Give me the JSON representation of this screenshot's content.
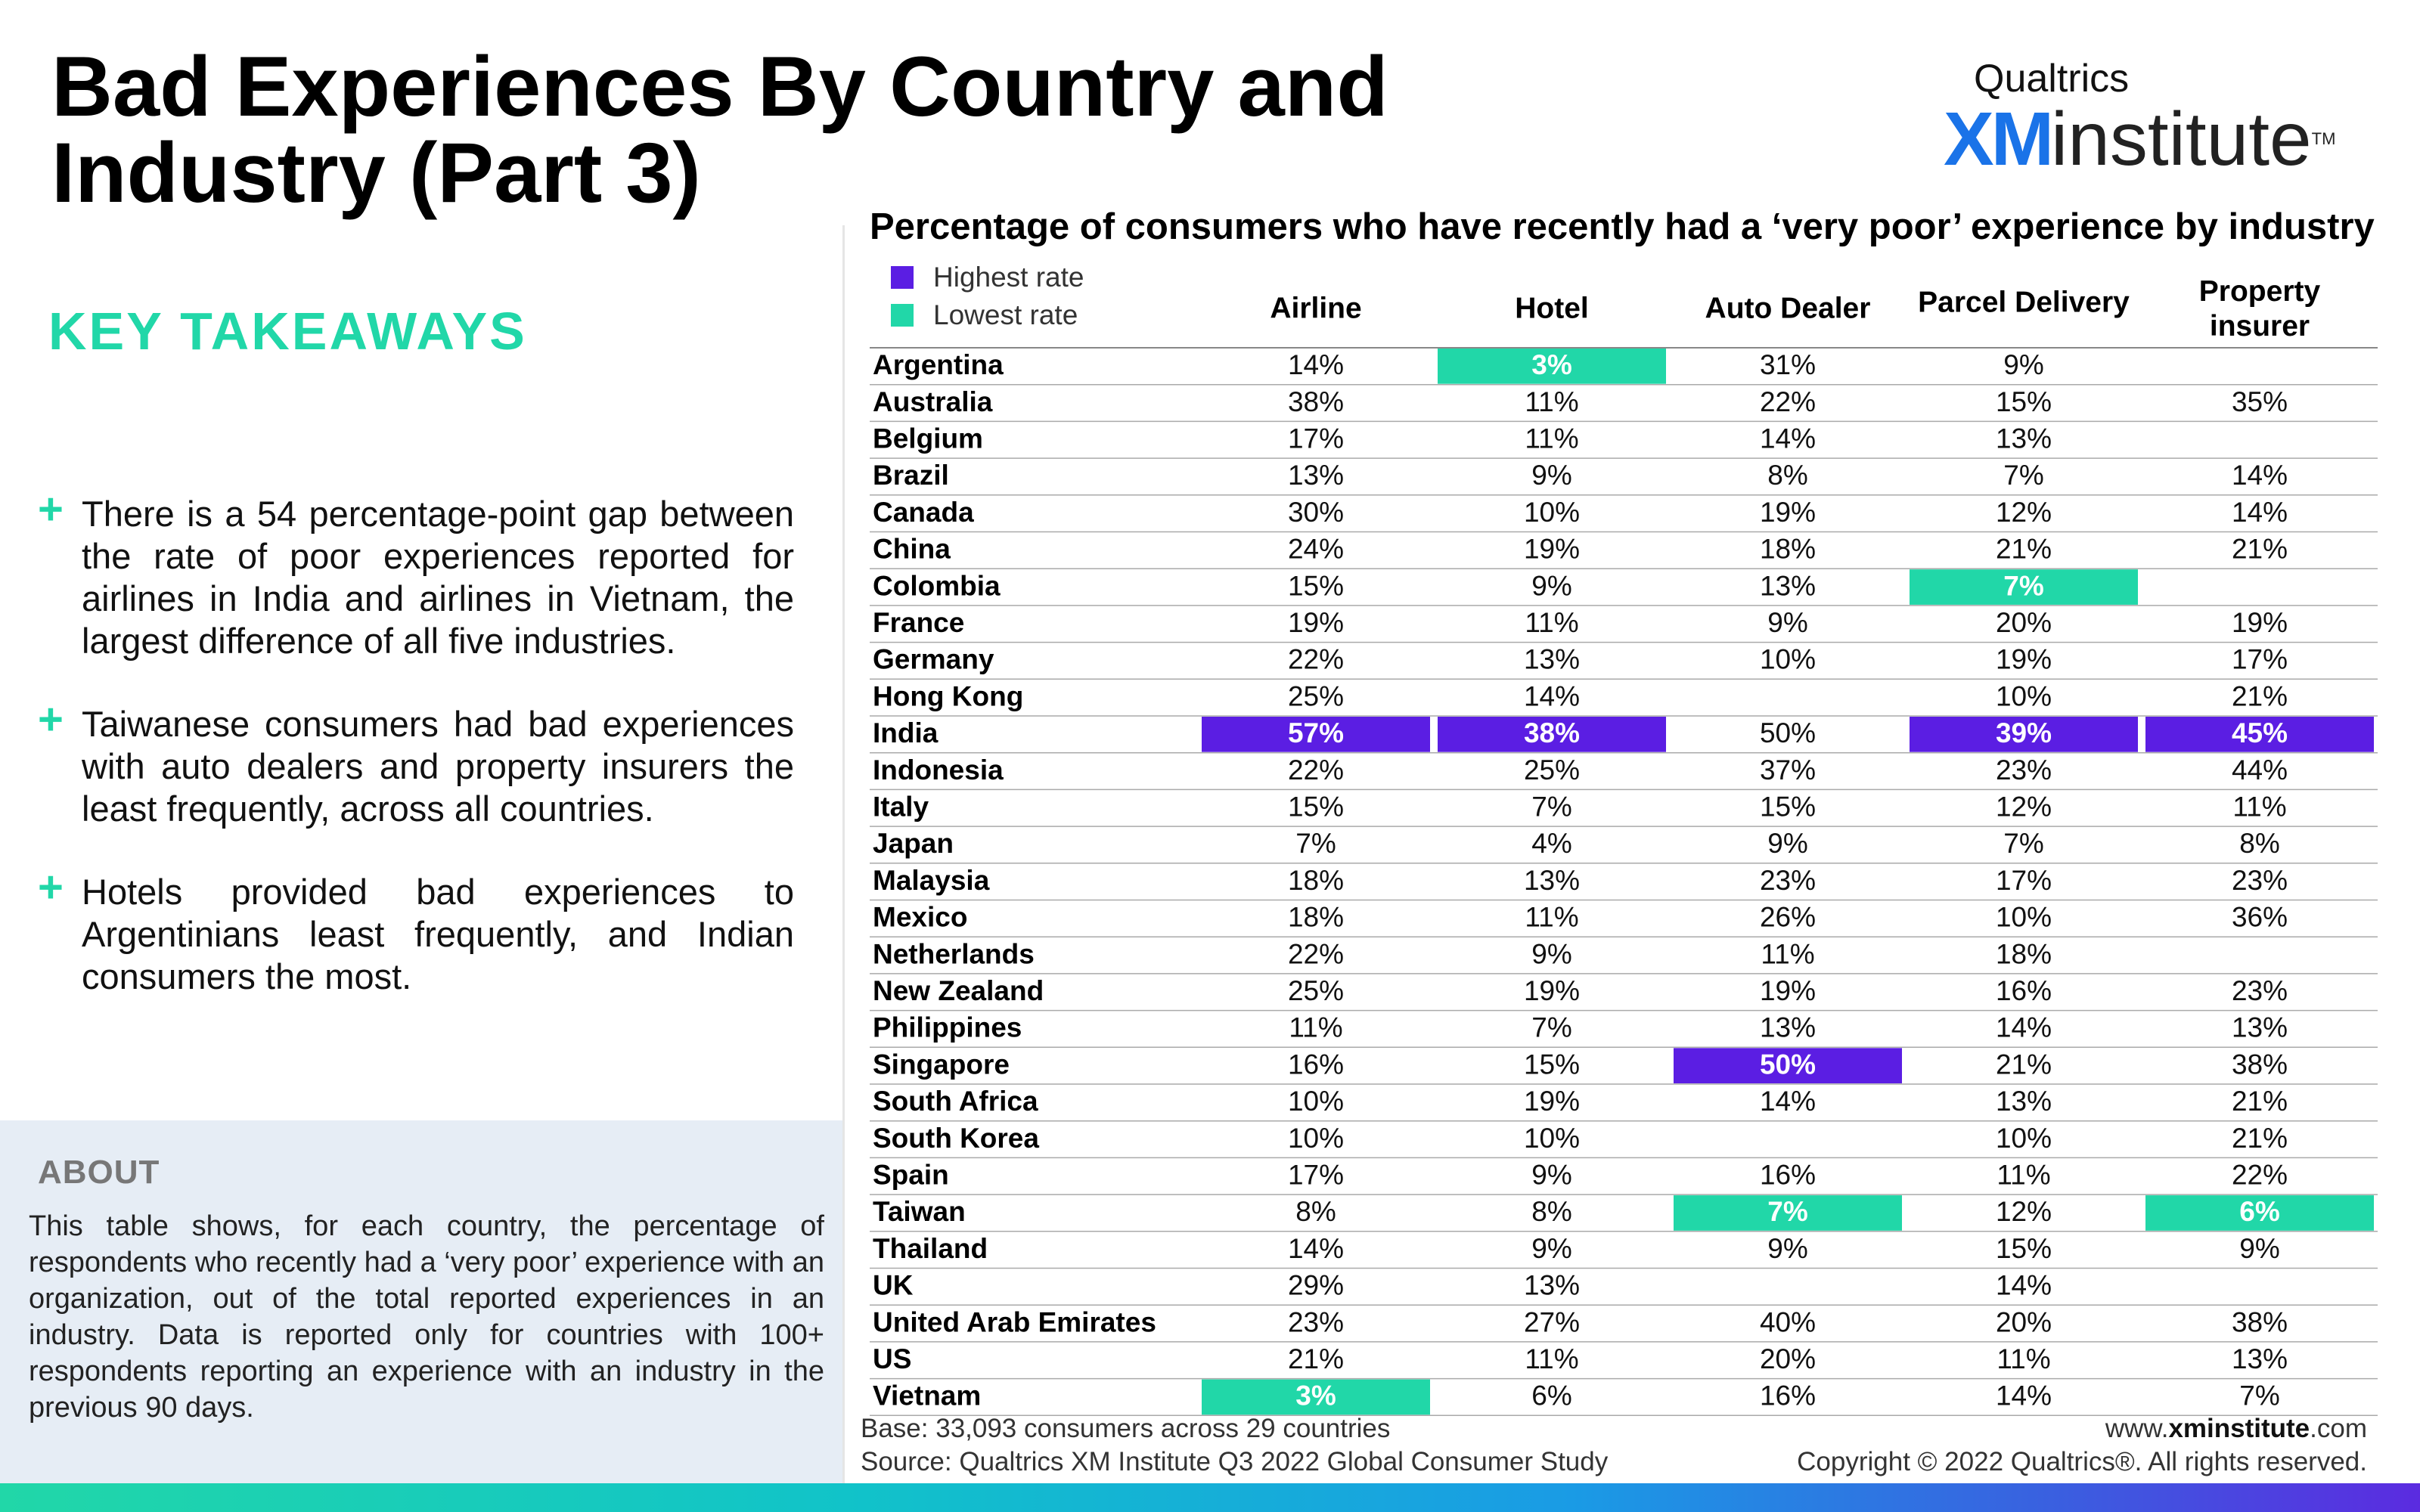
{
  "title": "Bad Experiences By Country and Industry (Part 3)",
  "logo": {
    "top": "Qualtrics",
    "xm": "XM",
    "institute": "institute",
    "tm": "TM"
  },
  "key_takeaways": {
    "heading": "KEY TAKEAWAYS",
    "items": [
      "There is a 54 percentage-point gap between the rate of poor experiences reported for airlines in India and airlines in Vietnam, the largest difference of all five industries.",
      "Taiwanese consumers had bad experiences with auto dealers and property insurers the least frequently, across all countries.",
      "Hotels provided bad experiences to Argentinians least frequently, and Indian consumers the most."
    ]
  },
  "about": {
    "heading": "ABOUT",
    "text": "This table shows, for each country, the percentage of respondents who recently had a ‘very poor’ experience with an organization, out of the total reported experiences in an industry. Data is reported only for countries with 100+ respondents reporting an experience with an industry in the previous 90 days."
  },
  "legend": {
    "highest": "Highest rate",
    "lowest": "Lowest rate"
  },
  "colors": {
    "highest": "#5b1ee3",
    "lowest": "#21d7a8",
    "accent": "#21d7a8"
  },
  "chart_data": {
    "type": "table",
    "title": "Percentage of consumers who have recently had a ‘very poor’ experience by industry",
    "columns": [
      "Airline",
      "Hotel",
      "Auto Dealer",
      "Parcel Delivery",
      "Property insurer"
    ],
    "rows": [
      {
        "country": "Argentina",
        "values": [
          "14%",
          "3%",
          "31%",
          "9%",
          ""
        ]
      },
      {
        "country": "Australia",
        "values": [
          "38%",
          "11%",
          "22%",
          "15%",
          "35%"
        ]
      },
      {
        "country": "Belgium",
        "values": [
          "17%",
          "11%",
          "14%",
          "13%",
          ""
        ]
      },
      {
        "country": "Brazil",
        "values": [
          "13%",
          "9%",
          "8%",
          "7%",
          "14%"
        ]
      },
      {
        "country": "Canada",
        "values": [
          "30%",
          "10%",
          "19%",
          "12%",
          "14%"
        ]
      },
      {
        "country": "China",
        "values": [
          "24%",
          "19%",
          "18%",
          "21%",
          "21%"
        ]
      },
      {
        "country": "Colombia",
        "values": [
          "15%",
          "9%",
          "13%",
          "7%",
          ""
        ]
      },
      {
        "country": "France",
        "values": [
          "19%",
          "11%",
          "9%",
          "20%",
          "19%"
        ]
      },
      {
        "country": "Germany",
        "values": [
          "22%",
          "13%",
          "10%",
          "19%",
          "17%"
        ]
      },
      {
        "country": "Hong Kong",
        "values": [
          "25%",
          "14%",
          "",
          "10%",
          "21%"
        ]
      },
      {
        "country": "India",
        "values": [
          "57%",
          "38%",
          "50%",
          "39%",
          "45%"
        ]
      },
      {
        "country": "Indonesia",
        "values": [
          "22%",
          "25%",
          "37%",
          "23%",
          "44%"
        ]
      },
      {
        "country": "Italy",
        "values": [
          "15%",
          "7%",
          "15%",
          "12%",
          "11%"
        ]
      },
      {
        "country": "Japan",
        "values": [
          "7%",
          "4%",
          "9%",
          "7%",
          "8%"
        ]
      },
      {
        "country": "Malaysia",
        "values": [
          "18%",
          "13%",
          "23%",
          "17%",
          "23%"
        ]
      },
      {
        "country": "Mexico",
        "values": [
          "18%",
          "11%",
          "26%",
          "10%",
          "36%"
        ]
      },
      {
        "country": "Netherlands",
        "values": [
          "22%",
          "9%",
          "11%",
          "18%",
          ""
        ]
      },
      {
        "country": "New Zealand",
        "values": [
          "25%",
          "19%",
          "19%",
          "16%",
          "23%"
        ]
      },
      {
        "country": "Philippines",
        "values": [
          "11%",
          "7%",
          "13%",
          "14%",
          "13%"
        ]
      },
      {
        "country": "Singapore",
        "values": [
          "16%",
          "15%",
          "50%",
          "21%",
          "38%"
        ]
      },
      {
        "country": "South Africa",
        "values": [
          "10%",
          "19%",
          "14%",
          "13%",
          "21%"
        ]
      },
      {
        "country": "South Korea",
        "values": [
          "10%",
          "10%",
          "",
          "10%",
          "21%"
        ]
      },
      {
        "country": "Spain",
        "values": [
          "17%",
          "9%",
          "16%",
          "11%",
          "22%"
        ]
      },
      {
        "country": "Taiwan",
        "values": [
          "8%",
          "8%",
          "7%",
          "12%",
          "6%"
        ]
      },
      {
        "country": "Thailand",
        "values": [
          "14%",
          "9%",
          "9%",
          "15%",
          "9%"
        ]
      },
      {
        "country": "UK",
        "values": [
          "29%",
          "13%",
          "",
          "14%",
          ""
        ]
      },
      {
        "country": "United Arab Emirates",
        "values": [
          "23%",
          "27%",
          "40%",
          "20%",
          "38%"
        ]
      },
      {
        "country": "US",
        "values": [
          "21%",
          "11%",
          "20%",
          "11%",
          "13%"
        ]
      },
      {
        "country": "Vietnam",
        "values": [
          "3%",
          "6%",
          "16%",
          "14%",
          "7%"
        ]
      }
    ],
    "highlights": [
      {
        "country": "India",
        "column": "Airline",
        "type": "highest"
      },
      {
        "country": "India",
        "column": "Hotel",
        "type": "highest"
      },
      {
        "country": "India",
        "column": "Parcel Delivery",
        "type": "highest"
      },
      {
        "country": "India",
        "column": "Property insurer",
        "type": "highest"
      },
      {
        "country": "Singapore",
        "column": "Auto Dealer",
        "type": "highest"
      },
      {
        "country": "Argentina",
        "column": "Hotel",
        "type": "lowest"
      },
      {
        "country": "Colombia",
        "column": "Parcel Delivery",
        "type": "lowest"
      },
      {
        "country": "Taiwan",
        "column": "Auto Dealer",
        "type": "lowest"
      },
      {
        "country": "Taiwan",
        "column": "Property insurer",
        "type": "lowest"
      },
      {
        "country": "Vietnam",
        "column": "Airline",
        "type": "lowest"
      }
    ]
  },
  "footer": {
    "base": "Base: 33,093 consumers across 29 countries",
    "source": "Source: Qualtrics XM Institute Q3 2022 Global Consumer Study",
    "url_prefix": "www.",
    "url_bold": "xminstitute",
    "url_suffix": ".com",
    "copyright": "Copyright © 2022 Qualtrics®. All rights reserved."
  }
}
